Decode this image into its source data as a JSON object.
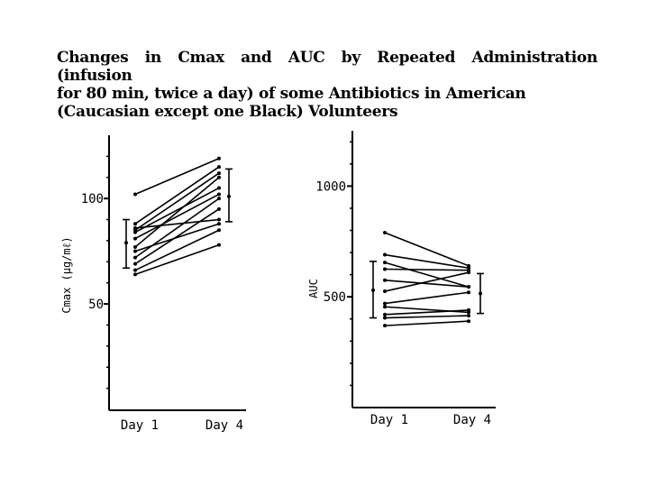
{
  "title_lines": [
    "Changes in Cmax and AUC by Repeated Administration (infusion",
    "for 80 min,  twice  a  day)  of  some  Antibiotics  in  American",
    "(Caucasian except one Black) Volunteers"
  ],
  "chart_data": [
    {
      "type": "line",
      "ylabel": "Cmax (μg/mℓ)",
      "categories": [
        "Day 1",
        "Day 4"
      ],
      "ylim": [
        0,
        130
      ],
      "yticks": [
        50,
        100
      ],
      "grid": false,
      "series": [
        {
          "values": [
            102,
            119
          ]
        },
        {
          "values": [
            88,
            115
          ]
        },
        {
          "values": [
            86,
            90
          ]
        },
        {
          "values": [
            85,
            112
          ]
        },
        {
          "values": [
            84,
            105
          ]
        },
        {
          "values": [
            81,
            102
          ]
        },
        {
          "values": [
            77,
            110
          ]
        },
        {
          "values": [
            75,
            88
          ]
        },
        {
          "values": [
            72,
            100
          ]
        },
        {
          "values": [
            69,
            95
          ]
        },
        {
          "values": [
            66,
            85
          ]
        },
        {
          "values": [
            64,
            78
          ]
        }
      ],
      "error_bars": [
        {
          "category": "Day 1",
          "mean": 79,
          "low": 67,
          "high": 90
        },
        {
          "category": "Day 4",
          "mean": 101,
          "low": 89,
          "high": 114
        }
      ]
    },
    {
      "type": "line",
      "ylabel": "AUC",
      "categories": [
        "Day 1",
        "Day 4"
      ],
      "ylim": [
        0,
        1250
      ],
      "yticks": [
        500,
        1000
      ],
      "grid": false,
      "series": [
        {
          "values": [
            790,
            640
          ]
        },
        {
          "values": [
            690,
            630
          ]
        },
        {
          "values": [
            655,
            545
          ]
        },
        {
          "values": [
            625,
            620
          ]
        },
        {
          "values": [
            575,
            545
          ]
        },
        {
          "values": [
            525,
            610
          ]
        },
        {
          "values": [
            470,
            520
          ]
        },
        {
          "values": [
            455,
            430
          ]
        },
        {
          "values": [
            420,
            440
          ]
        },
        {
          "values": [
            405,
            415
          ]
        },
        {
          "values": [
            370,
            390
          ]
        }
      ],
      "error_bars": [
        {
          "category": "Day 1",
          "mean": 530,
          "low": 405,
          "high": 660
        },
        {
          "category": "Day 4",
          "mean": 515,
          "low": 425,
          "high": 605
        }
      ]
    }
  ]
}
